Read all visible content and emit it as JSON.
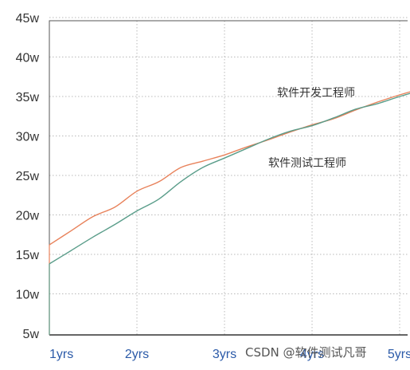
{
  "chart_data": {
    "type": "line",
    "title": "",
    "xlabel": "",
    "ylabel": "",
    "x": [
      "1yrs",
      "2yrs",
      "3yrs",
      "4yrs",
      "5yrs"
    ],
    "y_ticks": [
      "45w",
      "40w",
      "35w",
      "30w",
      "25w",
      "20w",
      "15w",
      "10w",
      "5w"
    ],
    "ylim": [
      5,
      45
    ],
    "grid": "dotted",
    "series": [
      {
        "name": "软件开发工程师",
        "color": "#e8825b",
        "x": [
          0,
          0.25,
          0.5,
          0.75,
          1.0,
          1.25,
          1.5,
          1.75,
          2.0,
          2.25,
          2.5,
          2.75,
          3.0,
          3.25,
          3.5,
          3.75,
          4.0,
          4.25
        ],
        "values": [
          16.2,
          18.0,
          19.8,
          21.0,
          23.0,
          24.2,
          26.0,
          26.8,
          27.6,
          28.6,
          29.5,
          30.5,
          31.4,
          32.2,
          33.3,
          34.3,
          35.2,
          36.0
        ]
      },
      {
        "name": "软件测试工程师",
        "color": "#5a9d8a",
        "x": [
          0,
          0.25,
          0.5,
          0.75,
          1.0,
          1.25,
          1.5,
          1.75,
          2.0,
          2.25,
          2.5,
          2.75,
          3.0,
          3.25,
          3.5,
          3.75,
          4.0,
          4.25
        ],
        "values": [
          13.8,
          15.5,
          17.2,
          18.8,
          20.5,
          22.0,
          24.2,
          26.0,
          27.2,
          28.4,
          29.6,
          30.6,
          31.3,
          32.3,
          33.4,
          34.1,
          35.0,
          35.8
        ]
      }
    ],
    "annotations": [
      "软件开发工程师",
      "软件测试工程师"
    ]
  },
  "watermark": "CSDN @软件测试凡哥"
}
